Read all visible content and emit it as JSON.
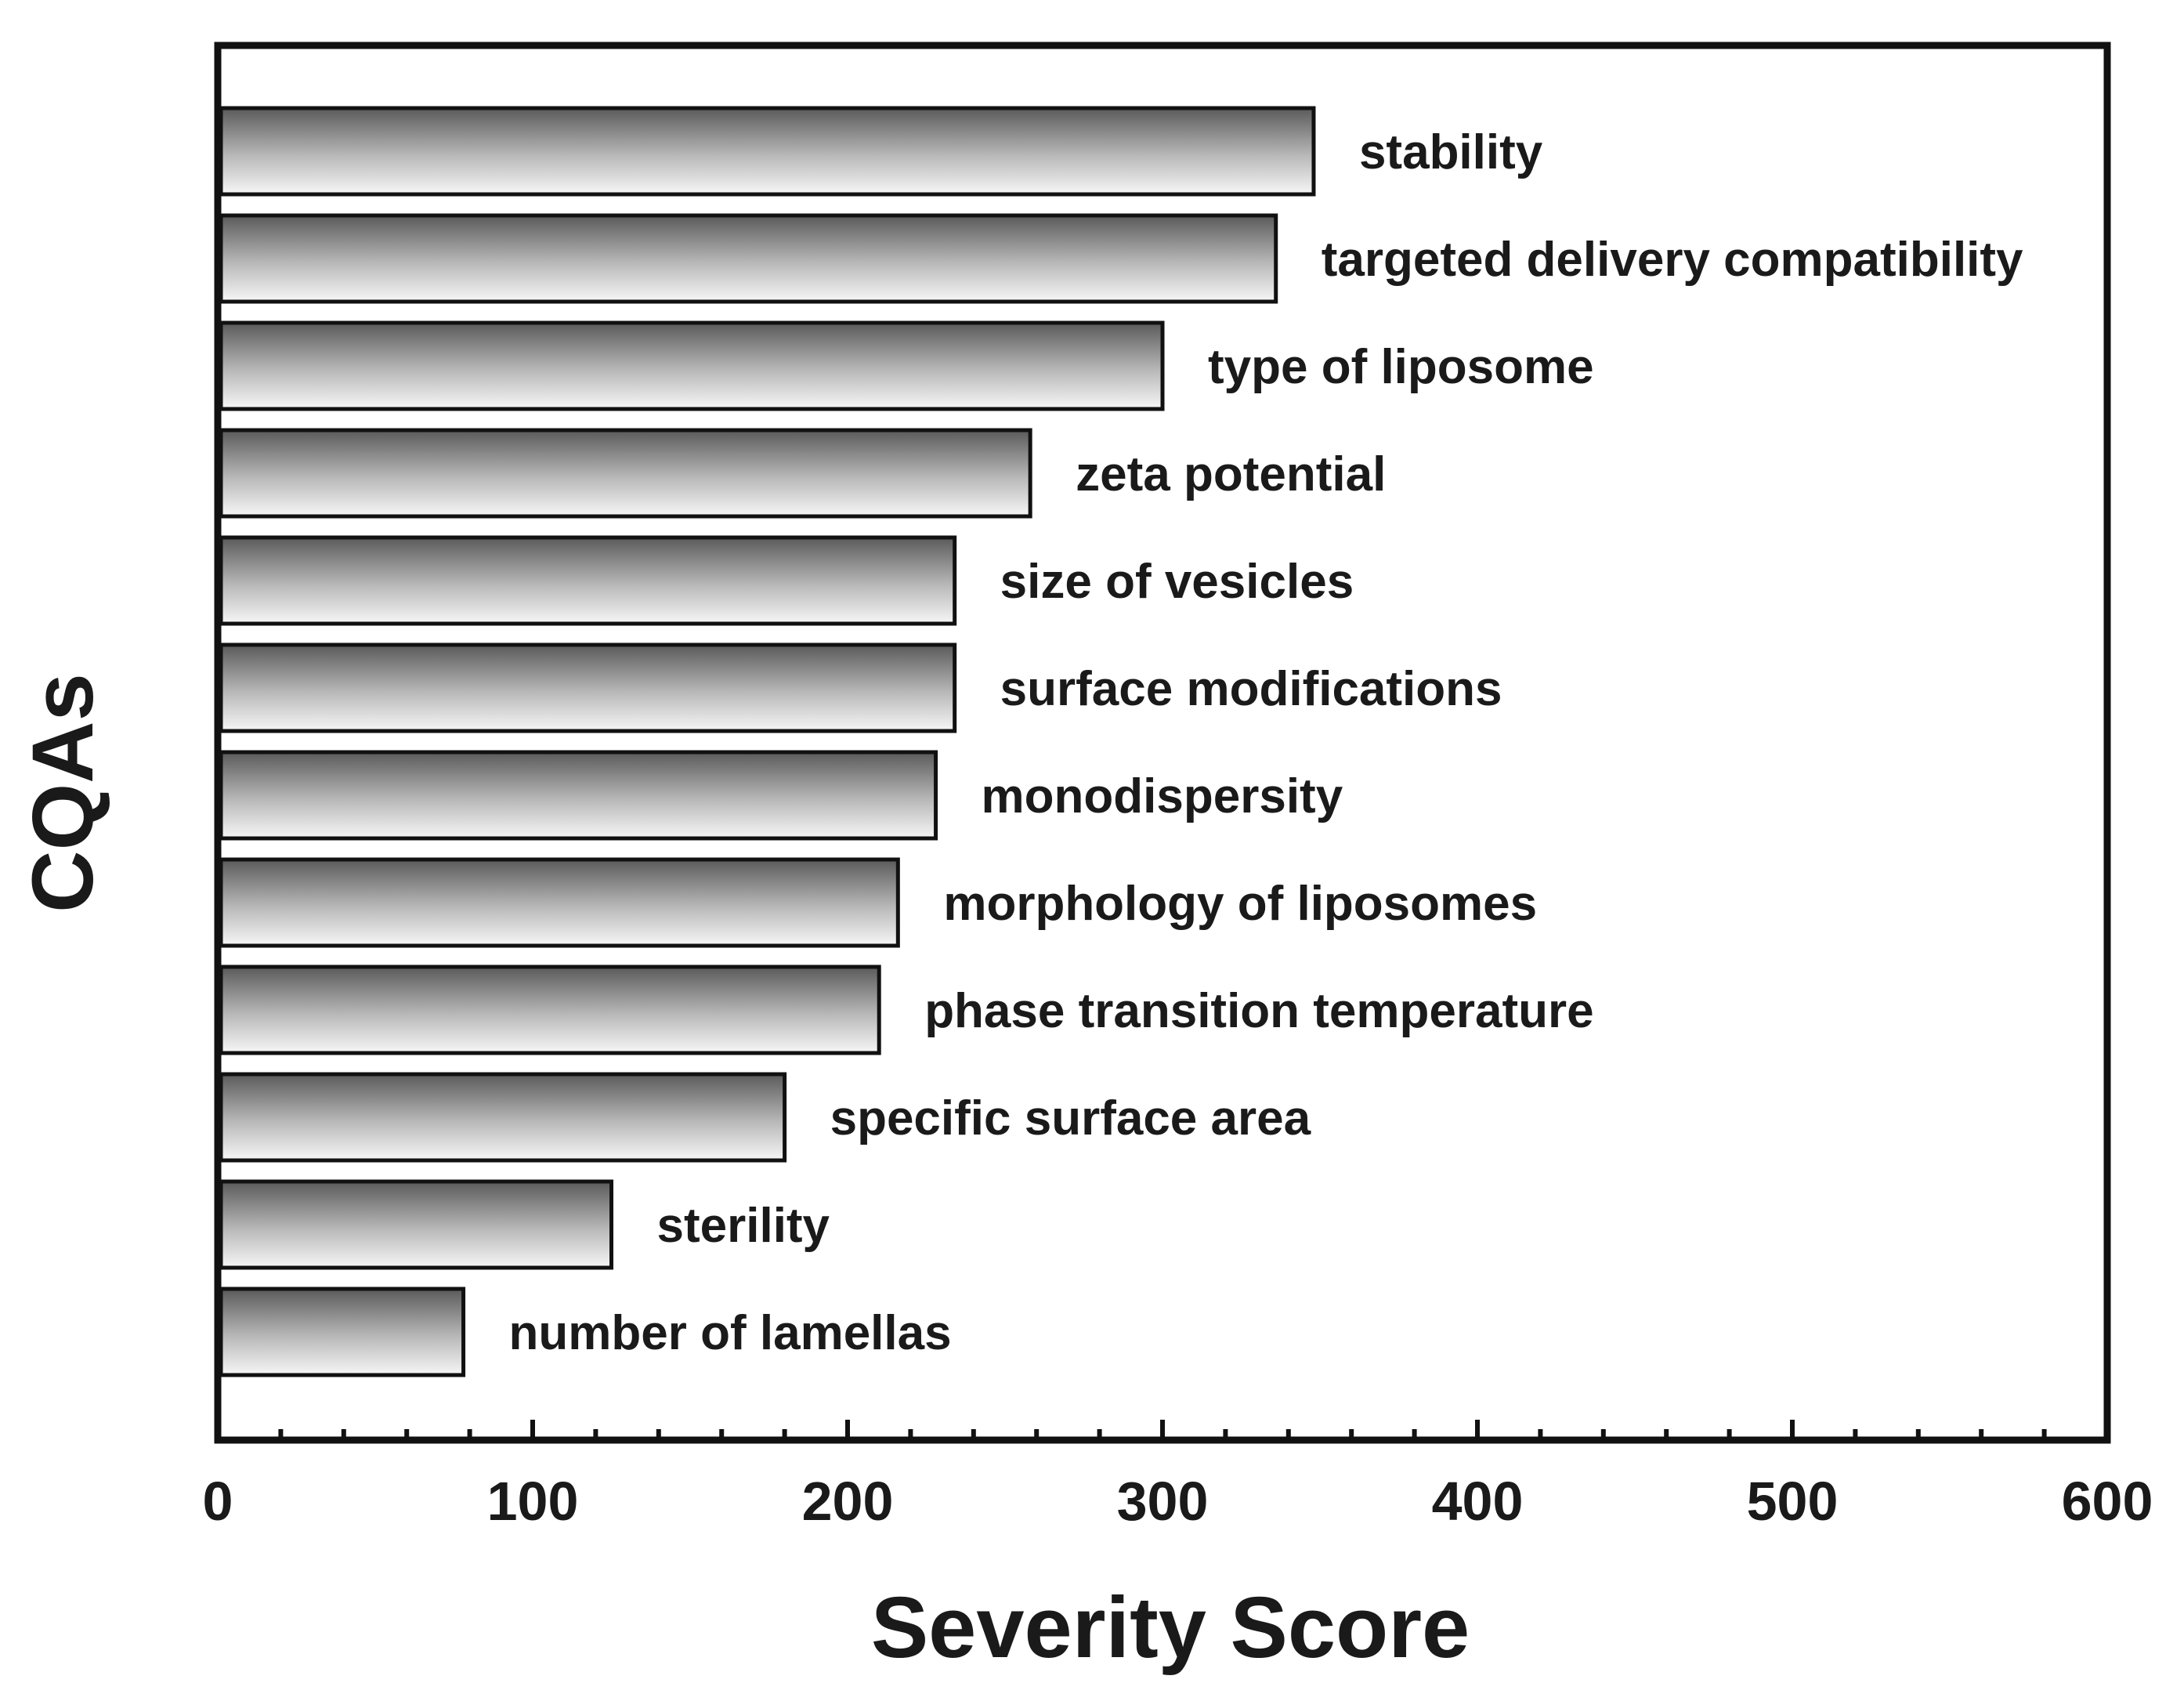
{
  "chart_data": {
    "type": "bar",
    "orientation": "horizontal",
    "title": "",
    "xlabel": "Severity Score",
    "ylabel": "CQAs",
    "xlim": [
      0,
      600
    ],
    "xticks": [
      "0",
      "100",
      "200",
      "300",
      "400",
      "500",
      "600"
    ],
    "xtick_values": [
      0,
      100,
      200,
      300,
      400,
      500,
      600
    ],
    "minor_tick_step": 20,
    "grid": false,
    "legend": "none",
    "categories": [
      "stability",
      "targeted delivery compatibility",
      "type of liposome",
      "zeta potential",
      "size of vesicles",
      "surface modifications",
      "monodispersity",
      "morphology of liposomes",
      "phase transition temperature",
      "specific surface area",
      "sterility",
      "number of lamellas"
    ],
    "values": [
      348,
      336,
      300,
      258,
      234,
      234,
      228,
      216,
      210,
      180,
      125,
      78
    ],
    "colors": {
      "bar_dark": "#5a5a5a",
      "bar_mid": "#b8b8b8",
      "bar_light": "#f7f7f7",
      "outline": "#111111"
    }
  }
}
